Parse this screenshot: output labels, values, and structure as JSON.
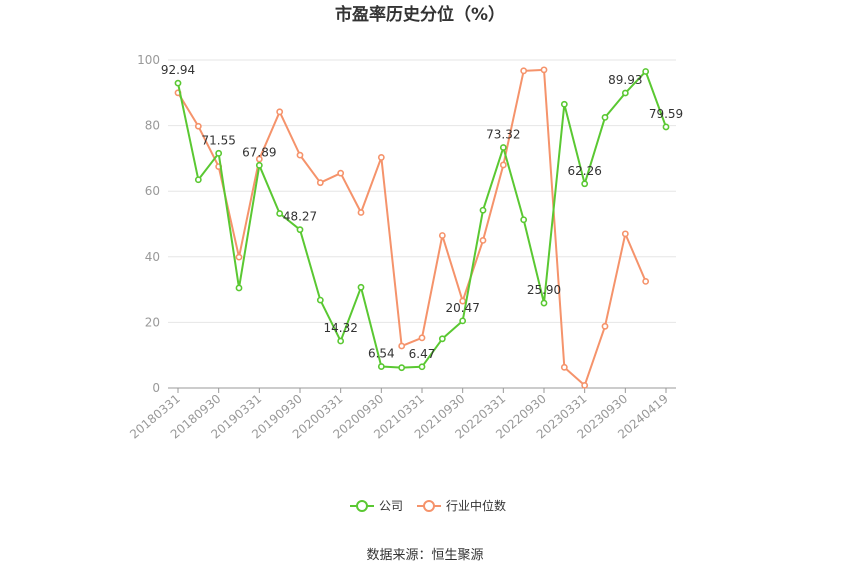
{
  "chart_data": {
    "type": "line",
    "title": "市盈率历史分位（%）",
    "source": "数据来源：恒生聚源",
    "ylim": [
      0,
      100
    ],
    "yticks": [
      0,
      20,
      40,
      60,
      80,
      100
    ],
    "x": [
      "20180331",
      "20180630",
      "20180930",
      "20181231",
      "20190331",
      "20190630",
      "20190930",
      "20191231",
      "20200331",
      "20200630",
      "20200930",
      "20201231",
      "20210331",
      "20210630",
      "20210930",
      "20211231",
      "20220331",
      "20220630",
      "20220930",
      "20221231",
      "20230331",
      "20230630",
      "20230930",
      "20231231",
      "20240419"
    ],
    "xtick_labels": [
      "20180331",
      "20180930",
      "20190331",
      "20190930",
      "20200331",
      "20200930",
      "20210331",
      "20210930",
      "20220331",
      "20220930",
      "20230331",
      "20230930",
      "20240419"
    ],
    "series": [
      {
        "name": "公司",
        "color": "#5ac832",
        "values": [
          92.94,
          63.5,
          71.55,
          30.5,
          67.89,
          53.2,
          48.27,
          26.8,
          14.32,
          30.7,
          6.54,
          6.2,
          6.47,
          15.0,
          20.47,
          54.2,
          73.32,
          51.3,
          25.9,
          86.5,
          62.26,
          82.5,
          89.93,
          96.5,
          79.59
        ],
        "labels": {
          "0": "92.94",
          "2": "71.55",
          "4": "67.89",
          "6": "48.27",
          "8": "14.32",
          "10": "6.54",
          "12": "6.47",
          "14": "20.47",
          "16": "73.32",
          "18": "25.90",
          "20": "62.26",
          "22": "89.93",
          "24": "79.59"
        }
      },
      {
        "name": "行业中位数",
        "color": "#f5936b",
        "values": [
          90.0,
          79.8,
          67.5,
          39.9,
          69.8,
          84.2,
          71.0,
          62.6,
          65.5,
          53.5,
          70.3,
          12.8,
          15.3,
          46.5,
          26.5,
          45.0,
          68.0,
          96.7,
          97.0,
          6.3,
          0.8,
          18.8,
          47.0,
          32.5,
          null
        ]
      }
    ],
    "grid": true,
    "legend_position": "bottom"
  }
}
